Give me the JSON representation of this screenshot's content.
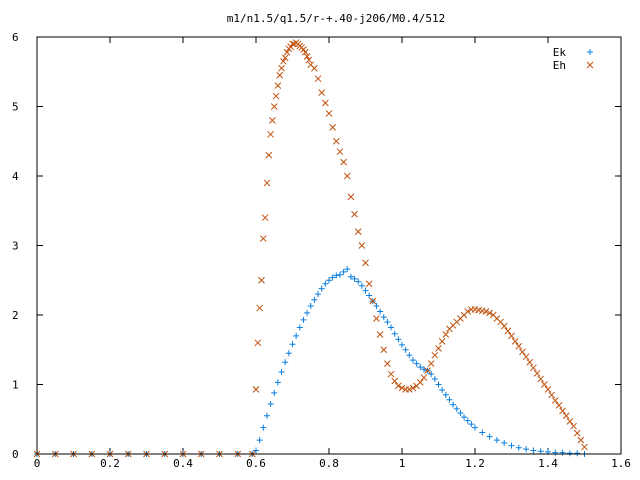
{
  "chart_data": {
    "type": "scatter",
    "title": "m1/n1.5/q1.5/r-+.40-j206/M0.4/512",
    "xlabel": "",
    "ylabel": "",
    "xlim": [
      0,
      1.6
    ],
    "ylim": [
      0,
      6
    ],
    "xticks": [
      "0",
      "0.2",
      "0.4",
      "0.6",
      "0.8",
      "1",
      "1.2",
      "1.4",
      "1.6"
    ],
    "yticks": [
      "0",
      "1",
      "2",
      "3",
      "4",
      "5",
      "6"
    ],
    "legend_position": "top-right",
    "series": [
      {
        "name": "Ek",
        "marker": "plus",
        "color": "#0a7fe0",
        "points": [
          [
            0.0,
            0
          ],
          [
            0.05,
            0
          ],
          [
            0.1,
            0
          ],
          [
            0.15,
            0
          ],
          [
            0.2,
            0
          ],
          [
            0.25,
            0
          ],
          [
            0.3,
            0
          ],
          [
            0.35,
            0
          ],
          [
            0.4,
            0
          ],
          [
            0.45,
            0
          ],
          [
            0.5,
            0
          ],
          [
            0.55,
            0
          ],
          [
            0.59,
            0
          ],
          [
            0.6,
            0.05
          ],
          [
            0.61,
            0.2
          ],
          [
            0.62,
            0.38
          ],
          [
            0.63,
            0.55
          ],
          [
            0.64,
            0.72
          ],
          [
            0.65,
            0.88
          ],
          [
            0.66,
            1.03
          ],
          [
            0.67,
            1.18
          ],
          [
            0.68,
            1.32
          ],
          [
            0.69,
            1.45
          ],
          [
            0.7,
            1.58
          ],
          [
            0.71,
            1.7
          ],
          [
            0.72,
            1.82
          ],
          [
            0.73,
            1.93
          ],
          [
            0.74,
            2.03
          ],
          [
            0.75,
            2.13
          ],
          [
            0.76,
            2.22
          ],
          [
            0.77,
            2.3
          ],
          [
            0.78,
            2.38
          ],
          [
            0.79,
            2.45
          ],
          [
            0.8,
            2.5
          ],
          [
            0.81,
            2.54
          ],
          [
            0.82,
            2.57
          ],
          [
            0.83,
            2.58
          ],
          [
            0.84,
            2.62
          ],
          [
            0.85,
            2.66
          ],
          [
            0.86,
            2.55
          ],
          [
            0.87,
            2.52
          ],
          [
            0.88,
            2.48
          ],
          [
            0.89,
            2.42
          ],
          [
            0.9,
            2.35
          ],
          [
            0.91,
            2.28
          ],
          [
            0.92,
            2.2
          ],
          [
            0.93,
            2.13
          ],
          [
            0.94,
            2.05
          ],
          [
            0.95,
            1.97
          ],
          [
            0.96,
            1.9
          ],
          [
            0.97,
            1.82
          ],
          [
            0.98,
            1.73
          ],
          [
            0.99,
            1.65
          ],
          [
            1.0,
            1.57
          ],
          [
            1.01,
            1.5
          ],
          [
            1.02,
            1.42
          ],
          [
            1.03,
            1.35
          ],
          [
            1.04,
            1.3
          ],
          [
            1.05,
            1.25
          ],
          [
            1.06,
            1.22
          ],
          [
            1.07,
            1.2
          ],
          [
            1.08,
            1.15
          ],
          [
            1.09,
            1.08
          ],
          [
            1.1,
            1.0
          ],
          [
            1.11,
            0.92
          ],
          [
            1.12,
            0.85
          ],
          [
            1.13,
            0.78
          ],
          [
            1.14,
            0.71
          ],
          [
            1.15,
            0.65
          ],
          [
            1.16,
            0.59
          ],
          [
            1.17,
            0.53
          ],
          [
            1.18,
            0.48
          ],
          [
            1.19,
            0.43
          ],
          [
            1.2,
            0.38
          ],
          [
            1.22,
            0.31
          ],
          [
            1.24,
            0.25
          ],
          [
            1.26,
            0.2
          ],
          [
            1.28,
            0.16
          ],
          [
            1.3,
            0.12
          ],
          [
            1.32,
            0.09
          ],
          [
            1.34,
            0.07
          ],
          [
            1.36,
            0.05
          ],
          [
            1.38,
            0.04
          ],
          [
            1.4,
            0.03
          ],
          [
            1.42,
            0.02
          ],
          [
            1.44,
            0.02
          ],
          [
            1.46,
            0.01
          ],
          [
            1.48,
            0.01
          ],
          [
            1.5,
            0
          ]
        ]
      },
      {
        "name": "Eh",
        "marker": "cross",
        "color": "#c0520e",
        "points": [
          [
            0.0,
            0
          ],
          [
            0.05,
            0
          ],
          [
            0.1,
            0
          ],
          [
            0.15,
            0
          ],
          [
            0.2,
            0
          ],
          [
            0.25,
            0
          ],
          [
            0.3,
            0
          ],
          [
            0.35,
            0
          ],
          [
            0.4,
            0
          ],
          [
            0.45,
            0
          ],
          [
            0.5,
            0
          ],
          [
            0.55,
            0
          ],
          [
            0.59,
            0
          ],
          [
            0.6,
            0.93
          ],
          [
            0.605,
            1.6
          ],
          [
            0.61,
            2.1
          ],
          [
            0.615,
            2.5
          ],
          [
            0.62,
            3.1
          ],
          [
            0.625,
            3.4
          ],
          [
            0.63,
            3.9
          ],
          [
            0.635,
            4.3
          ],
          [
            0.64,
            4.6
          ],
          [
            0.645,
            4.8
          ],
          [
            0.65,
            5.0
          ],
          [
            0.655,
            5.15
          ],
          [
            0.66,
            5.3
          ],
          [
            0.665,
            5.45
          ],
          [
            0.67,
            5.55
          ],
          [
            0.675,
            5.65
          ],
          [
            0.68,
            5.7
          ],
          [
            0.685,
            5.78
          ],
          [
            0.69,
            5.83
          ],
          [
            0.695,
            5.86
          ],
          [
            0.7,
            5.9
          ],
          [
            0.705,
            5.9
          ],
          [
            0.71,
            5.92
          ],
          [
            0.715,
            5.9
          ],
          [
            0.72,
            5.87
          ],
          [
            0.725,
            5.85
          ],
          [
            0.73,
            5.82
          ],
          [
            0.735,
            5.78
          ],
          [
            0.74,
            5.72
          ],
          [
            0.745,
            5.67
          ],
          [
            0.75,
            5.6
          ],
          [
            0.76,
            5.55
          ],
          [
            0.77,
            5.4
          ],
          [
            0.78,
            5.2
          ],
          [
            0.79,
            5.05
          ],
          [
            0.8,
            4.9
          ],
          [
            0.81,
            4.7
          ],
          [
            0.82,
            4.5
          ],
          [
            0.83,
            4.35
          ],
          [
            0.84,
            4.2
          ],
          [
            0.85,
            4.0
          ],
          [
            0.86,
            3.7
          ],
          [
            0.87,
            3.45
          ],
          [
            0.88,
            3.2
          ],
          [
            0.89,
            3.0
          ],
          [
            0.9,
            2.75
          ],
          [
            0.91,
            2.45
          ],
          [
            0.92,
            2.2
          ],
          [
            0.93,
            1.95
          ],
          [
            0.94,
            1.72
          ],
          [
            0.95,
            1.5
          ],
          [
            0.96,
            1.3
          ],
          [
            0.97,
            1.15
          ],
          [
            0.98,
            1.05
          ],
          [
            0.99,
            0.98
          ],
          [
            1.0,
            0.95
          ],
          [
            1.01,
            0.93
          ],
          [
            1.02,
            0.93
          ],
          [
            1.03,
            0.95
          ],
          [
            1.04,
            0.98
          ],
          [
            1.05,
            1.03
          ],
          [
            1.06,
            1.1
          ],
          [
            1.07,
            1.2
          ],
          [
            1.08,
            1.3
          ],
          [
            1.09,
            1.42
          ],
          [
            1.1,
            1.52
          ],
          [
            1.11,
            1.62
          ],
          [
            1.12,
            1.72
          ],
          [
            1.13,
            1.8
          ],
          [
            1.14,
            1.85
          ],
          [
            1.15,
            1.9
          ],
          [
            1.16,
            1.95
          ],
          [
            1.17,
            2.0
          ],
          [
            1.18,
            2.05
          ],
          [
            1.19,
            2.08
          ],
          [
            1.2,
            2.08
          ],
          [
            1.21,
            2.07
          ],
          [
            1.22,
            2.06
          ],
          [
            1.23,
            2.05
          ],
          [
            1.24,
            2.03
          ],
          [
            1.25,
            2.0
          ],
          [
            1.26,
            1.95
          ],
          [
            1.27,
            1.9
          ],
          [
            1.28,
            1.84
          ],
          [
            1.29,
            1.77
          ],
          [
            1.3,
            1.7
          ],
          [
            1.31,
            1.62
          ],
          [
            1.32,
            1.55
          ],
          [
            1.33,
            1.47
          ],
          [
            1.34,
            1.4
          ],
          [
            1.35,
            1.32
          ],
          [
            1.36,
            1.24
          ],
          [
            1.37,
            1.16
          ],
          [
            1.38,
            1.08
          ],
          [
            1.39,
            1.0
          ],
          [
            1.4,
            0.93
          ],
          [
            1.41,
            0.85
          ],
          [
            1.42,
            0.77
          ],
          [
            1.43,
            0.7
          ],
          [
            1.44,
            0.62
          ],
          [
            1.45,
            0.55
          ],
          [
            1.46,
            0.47
          ],
          [
            1.47,
            0.4
          ],
          [
            1.48,
            0.3
          ],
          [
            1.49,
            0.2
          ],
          [
            1.5,
            0.1
          ]
        ]
      }
    ]
  }
}
